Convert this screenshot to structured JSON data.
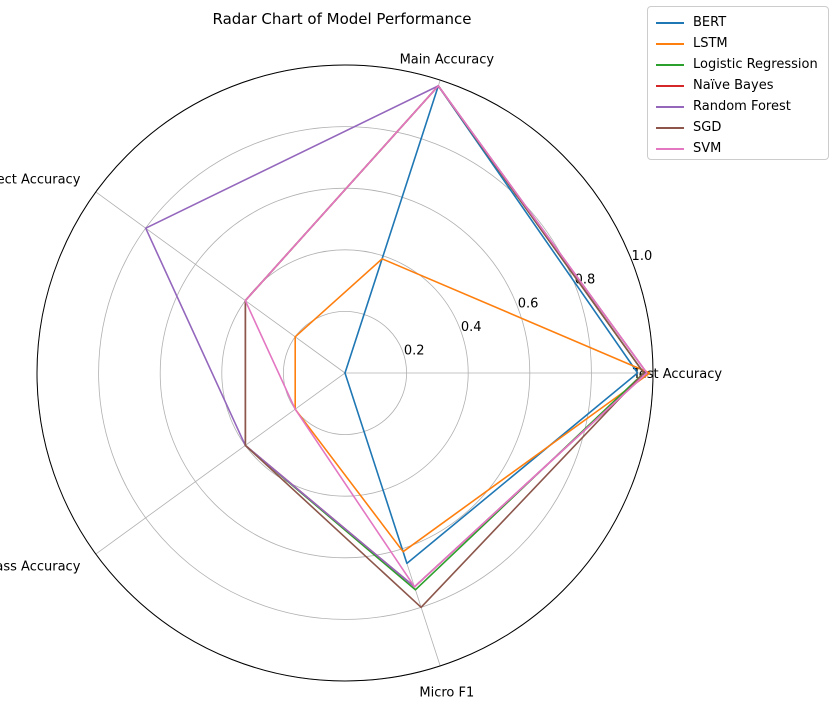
{
  "chart_data": {
    "type": "radar",
    "title": "Radar Chart of Model Performance",
    "axes": [
      "Test Accuracy",
      "Main Accuracy",
      "All Correct Accuracy",
      "Multiclass Accuracy",
      "Micro F1"
    ],
    "radial_ticks": [
      "0.2",
      "0.4",
      "0.6",
      "0.8",
      "1.0"
    ],
    "rlim": [
      0,
      1.0
    ],
    "grid": true,
    "legend_position": "top-right (outside)",
    "series": [
      {
        "name": "BERT",
        "color": "#1f77b4",
        "values": [
          0.95,
          0.98,
          0.0,
          0.0,
          0.65
        ]
      },
      {
        "name": "LSTM",
        "color": "#ff7f0e",
        "values": [
          0.99,
          0.39,
          0.2,
          0.2,
          0.61
        ]
      },
      {
        "name": "Logistic Regression",
        "color": "#2ca02c",
        "values": [
          0.97,
          0.98,
          0.4,
          0.4,
          0.74
        ]
      },
      {
        "name": "Naïve Bayes",
        "color": "#d62728",
        "values": [
          0.98,
          0.98,
          0.4,
          0.4,
          0.73
        ]
      },
      {
        "name": "Random Forest",
        "color": "#9467bd",
        "values": [
          0.98,
          0.98,
          0.8,
          0.4,
          0.73
        ]
      },
      {
        "name": "SGD",
        "color": "#8c564b",
        "values": [
          0.97,
          0.98,
          0.4,
          0.4,
          0.8
        ]
      },
      {
        "name": "SVM",
        "color": "#e377c2",
        "values": [
          0.98,
          0.98,
          0.4,
          0.2,
          0.73
        ]
      }
    ]
  }
}
